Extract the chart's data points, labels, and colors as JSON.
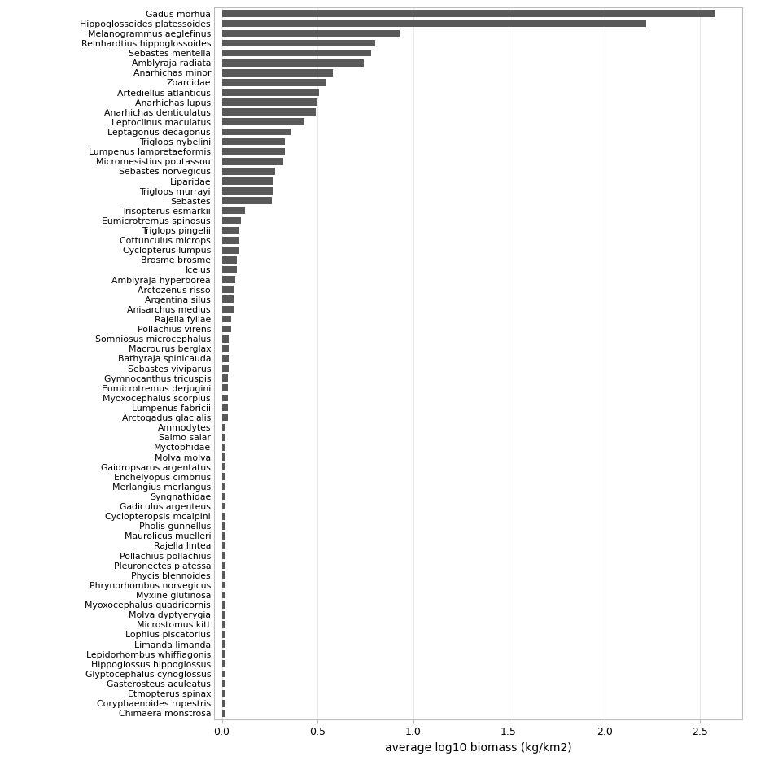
{
  "species": [
    "Gadus morhua",
    "Hippoglossoides platessoides",
    "Melanogrammus aeglefinus",
    "Reinhardtius hippoglossoides",
    "Sebastes mentella",
    "Amblyraja radiata",
    "Anarhichas minor",
    "Zoarcidae",
    "Artediellus atlanticus",
    "Anarhichas lupus",
    "Anarhichas denticulatus",
    "Leptoclinus maculatus",
    "Leptagonus decagonus",
    "Triglops nybelini",
    "Lumpenus lampretaeformis",
    "Micromesistius poutassou",
    "Sebastes norvegicus",
    "Liparidae",
    "Triglops murrayi",
    "Sebastes",
    "Trisopterus esmarkii",
    "Eumicrotremus spinosus",
    "Triglops pingelii",
    "Cottunculus microps",
    "Cyclopterus lumpus",
    "Brosme brosme",
    "Icelus",
    "Amblyraja hyperborea",
    "Arctozenus risso",
    "Argentina silus",
    "Anisarchus medius",
    "Rajella fyllae",
    "Pollachius virens",
    "Somniosus microcephalus",
    "Macrourus berglax",
    "Bathyraja spinicauda",
    "Sebastes viviparus",
    "Gymnocanthus tricuspis",
    "Eumicrotremus derjugini",
    "Myoxocephalus scorpius",
    "Lumpenus fabricii",
    "Arctogadus glacialis",
    "Ammodytes",
    "Salmo salar",
    "Myctophidae",
    "Molva molva",
    "Gaidropsarus argentatus",
    "Enchelyopus cimbrius",
    "Merlangius merlangus",
    "Syngnathidae",
    "Gadiculus argenteus",
    "Cyclopteropsis mcalpini",
    "Pholis gunnellus",
    "Maurolicus muelleri",
    "Rajella lintea",
    "Pollachius pollachius",
    "Pleuronectes platessa",
    "Phycis blennoides",
    "Phrynorhombus norvegicus",
    "Myxine glutinosa",
    "Myoxocephalus quadricornis",
    "Molva dyptyerygia",
    "Microstomus kitt",
    "Lophius piscatorius",
    "Limanda limanda",
    "Lepidorhombus whiffiagonis",
    "Hippoglossus hippoglossus",
    "Glyptocephalus cynoglossus",
    "Gasterosteus aculeatus",
    "Etmopterus spinax",
    "Coryphaenoides rupestris",
    "Chimaera monstrosa"
  ],
  "values": [
    2.58,
    2.22,
    0.93,
    0.8,
    0.78,
    0.74,
    0.58,
    0.54,
    0.51,
    0.5,
    0.49,
    0.43,
    0.36,
    0.33,
    0.33,
    0.32,
    0.28,
    0.27,
    0.27,
    0.26,
    0.12,
    0.1,
    0.09,
    0.09,
    0.09,
    0.08,
    0.08,
    0.07,
    0.06,
    0.06,
    0.06,
    0.05,
    0.05,
    0.04,
    0.04,
    0.04,
    0.04,
    0.03,
    0.03,
    0.03,
    0.03,
    0.03,
    0.02,
    0.02,
    0.02,
    0.02,
    0.02,
    0.02,
    0.02,
    0.02,
    0.015,
    0.015,
    0.015,
    0.015,
    0.015,
    0.015,
    0.015,
    0.015,
    0.015,
    0.015,
    0.015,
    0.015,
    0.015,
    0.015,
    0.015,
    0.015,
    0.015,
    0.015,
    0.015,
    0.015,
    0.015,
    0.015
  ],
  "bar_color": "#595959",
  "xlabel": "average log10 biomass (kg/km2)",
  "xlim": [
    -0.04,
    2.72
  ],
  "xticks": [
    0.0,
    0.5,
    1.0,
    1.5,
    2.0,
    2.5
  ],
  "background_color": "#ffffff",
  "grid_color": "#e8e8e8",
  "spine_color": "#bbbbbb",
  "label_fontsize": 7.8,
  "xlabel_fontsize": 10,
  "xtick_fontsize": 9
}
